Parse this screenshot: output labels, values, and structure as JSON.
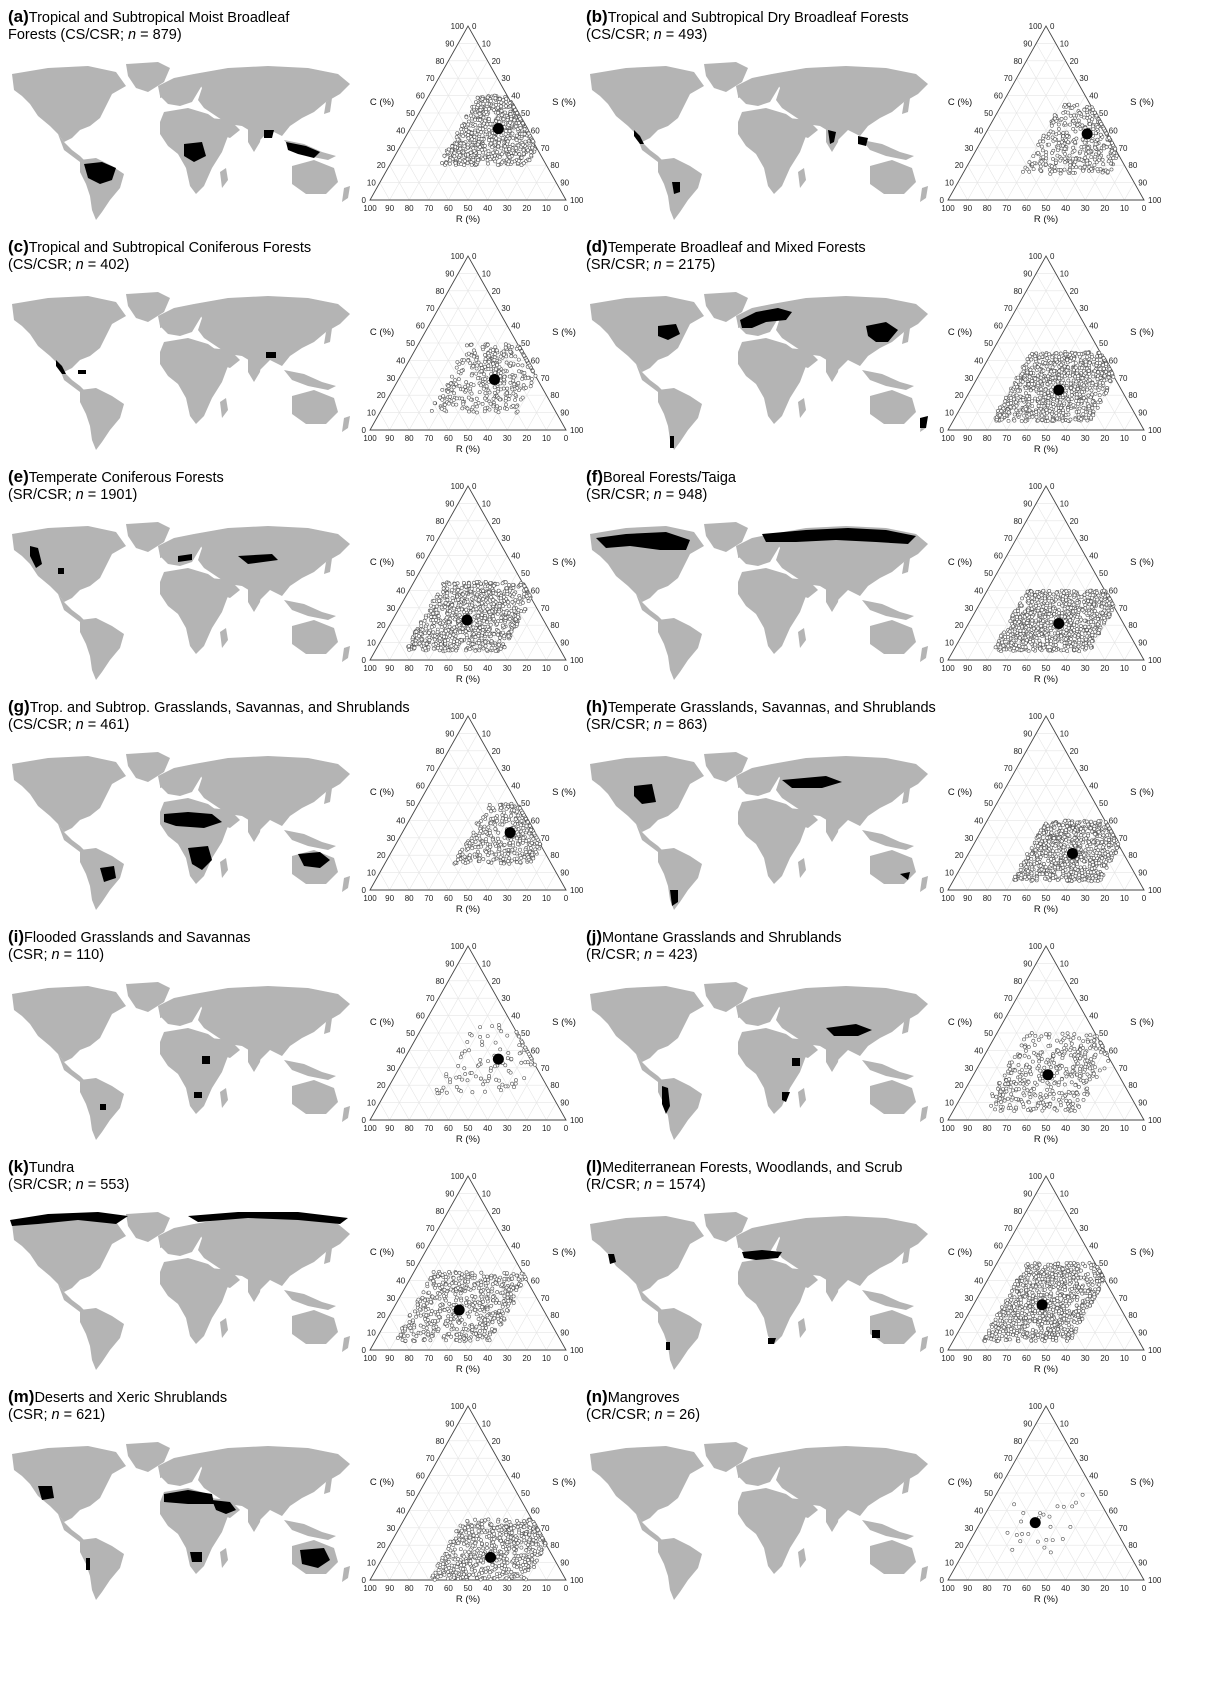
{
  "figure": {
    "axis_labels": {
      "c": "C (%)",
      "s": "S (%)",
      "r": "R (%)"
    },
    "tick_values": [
      "0",
      "10",
      "20",
      "30",
      "40",
      "50",
      "60",
      "70",
      "80",
      "90",
      "100"
    ],
    "colors": {
      "land": "#b4b4b4",
      "biome": "#000000",
      "points": "#555555",
      "mean": "#000000"
    }
  },
  "panels": [
    {
      "label": "(a)",
      "title1": "Tropical and Subtropical Moist Broadleaf",
      "title2_pre": "Forests (CS/CSR; ",
      "n": "879",
      "regions": [
        "amazon",
        "congo",
        "seasia",
        "india_ne"
      ]
    },
    {
      "label": "(b)",
      "title1": "Tropical and Subtropical Dry Broadleaf Forests",
      "title2_pre": "(CS/CSR; ",
      "n": "493",
      "regions": [
        "mexico_w",
        "bolivia",
        "india",
        "seasia_dry"
      ]
    },
    {
      "label": "(c)",
      "title1": "Tropical and Subtropical Coniferous Forests",
      "title2_pre": "(CS/CSR; ",
      "n": "402",
      "regions": [
        "mexico_w",
        "caribbean",
        "himalaya_e"
      ]
    },
    {
      "label": "(d)",
      "title1": "Temperate Broadleaf and Mixed Forests",
      "title2_pre": "(SR/CSR; ",
      "n": "2175",
      "regions": [
        "usa_east",
        "europe",
        "china_e",
        "chile_s",
        "nz_se"
      ]
    },
    {
      "label": "(e)",
      "title1": "Temperate Coniferous Forests",
      "title2_pre": "(SR/CSR; ",
      "n": "1901",
      "regions": [
        "pnw",
        "usa_se_small",
        "alps",
        "siberia_s"
      ]
    },
    {
      "label": "(f)",
      "title1": "Boreal Forests/Taiga",
      "title2_pre": "(SR/CSR; ",
      "n": "948",
      "regions": [
        "canada_boreal",
        "eurasia_boreal"
      ]
    },
    {
      "label": "(g)",
      "title1": "Trop. and Subtrop. Grasslands, Savannas, and Shrublands",
      "title2_pre": "(CS/CSR; ",
      "n": "461",
      "regions": [
        "sahel",
        "africa_s",
        "brazil_cerrado",
        "aus_n"
      ]
    },
    {
      "label": "(h)",
      "title1": "Temperate Grasslands, Savannas, and Shrublands",
      "title2_pre": "(SR/CSR; ",
      "n": "863",
      "regions": [
        "great_plains",
        "patagonia",
        "steppe",
        "aus_se"
      ]
    },
    {
      "label": "(i)",
      "title1": "Flooded Grasslands and Savannas",
      "title2_pre": "(CSR; ",
      "n": "110",
      "regions": [
        "pantanal",
        "sudd",
        "okavango"
      ]
    },
    {
      "label": "(j)",
      "title1": "Montane Grasslands and Shrublands",
      "title2_pre": "(R/CSR; ",
      "n": "423",
      "regions": [
        "andes",
        "tibet",
        "ethiopia",
        "africa_se"
      ]
    },
    {
      "label": "(k)",
      "title1": "Tundra",
      "title2_pre": "(SR/CSR; ",
      "n": "553",
      "regions": [
        "arctic_na",
        "arctic_ea"
      ]
    },
    {
      "label": "(l)",
      "title1": "Mediterranean Forests, Woodlands, and Scrub",
      "title2_pre": "(R/CSR; ",
      "n": "1574",
      "regions": [
        "california",
        "medit",
        "chile_c",
        "sa_cape",
        "aus_sw"
      ]
    },
    {
      "label": "(m)",
      "title1": "Deserts and Xeric Shrublands",
      "title2_pre": "(CSR; ",
      "n": "621",
      "regions": [
        "sahara",
        "arabia",
        "aus_c",
        "usa_sw",
        "kalahari",
        "atacama"
      ]
    },
    {
      "label": "(n)",
      "title1": "Mangroves",
      "title2_pre": "(CR/CSR; ",
      "n": "26",
      "regions": []
    }
  ],
  "chart_data": [
    {
      "panel": "(a)",
      "type": "scatter",
      "subtype": "ternary",
      "n": 879,
      "mean": {
        "C": 41,
        "S": 45,
        "R": 14
      },
      "spread": {
        "C": [
          20,
          60
        ],
        "S": [
          25,
          70
        ],
        "R": [
          0,
          45
        ]
      }
    },
    {
      "panel": "(b)",
      "type": "scatter",
      "subtype": "ternary",
      "n": 493,
      "mean": {
        "C": 38,
        "S": 52,
        "R": 10
      },
      "spread": {
        "C": [
          15,
          55
        ],
        "S": [
          30,
          75
        ],
        "R": [
          0,
          50
        ]
      }
    },
    {
      "panel": "(c)",
      "type": "scatter",
      "subtype": "ternary",
      "n": 402,
      "mean": {
        "C": 29,
        "S": 49,
        "R": 22
      },
      "spread": {
        "C": [
          10,
          50
        ],
        "S": [
          25,
          70
        ],
        "R": [
          5,
          55
        ]
      }
    },
    {
      "panel": "(d)",
      "type": "scatter",
      "subtype": "ternary",
      "n": 2175,
      "mean": {
        "C": 23,
        "S": 45,
        "R": 32
      },
      "spread": {
        "C": [
          5,
          45
        ],
        "S": [
          20,
          70
        ],
        "R": [
          10,
          60
        ]
      }
    },
    {
      "panel": "(e)",
      "type": "scatter",
      "subtype": "ternary",
      "n": 1901,
      "mean": {
        "C": 23,
        "S": 38,
        "R": 39
      },
      "spread": {
        "C": [
          5,
          45
        ],
        "S": [
          15,
          65
        ],
        "R": [
          15,
          60
        ]
      }
    },
    {
      "panel": "(f)",
      "type": "scatter",
      "subtype": "ternary",
      "n": 948,
      "mean": {
        "C": 21,
        "S": 46,
        "R": 33
      },
      "spread": {
        "C": [
          5,
          40
        ],
        "S": [
          20,
          70
        ],
        "R": [
          10,
          60
        ]
      }
    },
    {
      "panel": "(g)",
      "type": "scatter",
      "subtype": "ternary",
      "n": 461,
      "mean": {
        "C": 33,
        "S": 55,
        "R": 12
      },
      "spread": {
        "C": [
          15,
          50
        ],
        "S": [
          35,
          75
        ],
        "R": [
          0,
          40
        ]
      }
    },
    {
      "panel": "(h)",
      "type": "scatter",
      "subtype": "ternary",
      "n": 863,
      "mean": {
        "C": 21,
        "S": 53,
        "R": 26
      },
      "spread": {
        "C": [
          5,
          40
        ],
        "S": [
          30,
          75
        ],
        "R": [
          5,
          55
        ]
      }
    },
    {
      "panel": "(i)",
      "type": "scatter",
      "subtype": "ternary",
      "n": 110,
      "mean": {
        "C": 35,
        "S": 48,
        "R": 17
      },
      "spread": {
        "C": [
          15,
          55
        ],
        "S": [
          25,
          70
        ],
        "R": [
          0,
          45
        ]
      }
    },
    {
      "panel": "(j)",
      "type": "scatter",
      "subtype": "ternary",
      "n": 423,
      "mean": {
        "C": 26,
        "S": 38,
        "R": 36
      },
      "spread": {
        "C": [
          5,
          50
        ],
        "S": [
          15,
          65
        ],
        "R": [
          10,
          60
        ]
      }
    },
    {
      "panel": "(k)",
      "type": "scatter",
      "subtype": "ternary",
      "n": 553,
      "mean": {
        "C": 23,
        "S": 34,
        "R": 43
      },
      "spread": {
        "C": [
          5,
          45
        ],
        "S": [
          10,
          60
        ],
        "R": [
          20,
          65
        ]
      }
    },
    {
      "panel": "(l)",
      "type": "scatter",
      "subtype": "ternary",
      "n": 1574,
      "mean": {
        "C": 26,
        "S": 35,
        "R": 39
      },
      "spread": {
        "C": [
          5,
          50
        ],
        "S": [
          15,
          60
        ],
        "R": [
          15,
          60
        ]
      }
    },
    {
      "panel": "(m)",
      "type": "scatter",
      "subtype": "ternary",
      "n": 621,
      "mean": {
        "C": 13,
        "S": 55,
        "R": 32
      },
      "spread": {
        "C": [
          0,
          35
        ],
        "S": [
          30,
          80
        ],
        "R": [
          10,
          55
        ]
      }
    },
    {
      "panel": "(n)",
      "type": "scatter",
      "subtype": "ternary",
      "n": 26,
      "mean": {
        "C": 33,
        "S": 28,
        "R": 39
      },
      "spread": {
        "C": [
          15,
          50
        ],
        "S": [
          10,
          50
        ],
        "R": [
          20,
          60
        ]
      }
    }
  ]
}
